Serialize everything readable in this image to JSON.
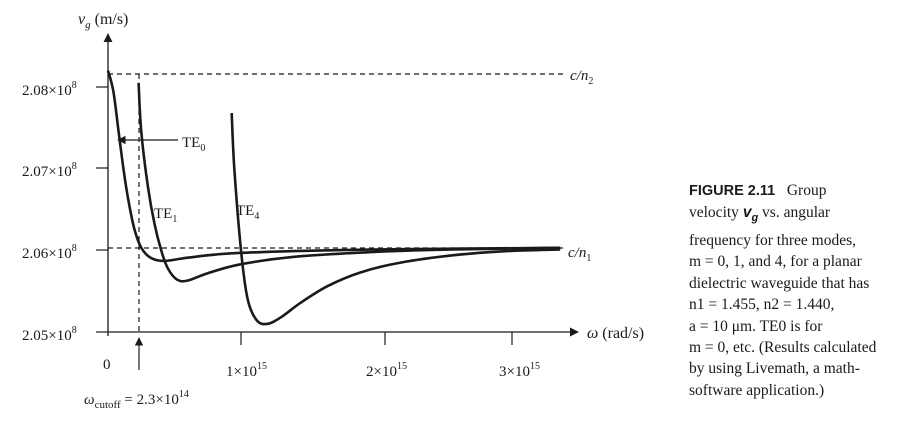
{
  "chart_data": {
    "type": "line",
    "title": "",
    "xlabel": "ω (rad/s)",
    "ylabel": "v_g (m/s)",
    "xlim": [
      0,
      3400000000000000.0
    ],
    "ylim": [
      205000000.0,
      208200000.0
    ],
    "x_ticks": [
      "0",
      "1×10^15",
      "2×10^15",
      "3×10^15"
    ],
    "y_ticks": [
      "2.05×10^8",
      "2.06×10^8",
      "2.07×10^8",
      "2.08×10^8"
    ],
    "reference_lines": [
      {
        "label": "c/n2",
        "y": 208200000.0,
        "style": "dashed"
      },
      {
        "label": "c/n1",
        "y": 206040000.0,
        "style": "dashed"
      }
    ],
    "cutoff_annotation": {
      "label": "ωcutoff = 2.3×10^14",
      "x": 230000000000000.0
    },
    "series": [
      {
        "name": "TE0",
        "x": [
          0,
          40000000000000.0,
          80000000000000.0,
          120000000000000.0,
          160000000000000.0,
          200000000000000.0,
          250000000000000.0,
          320000000000000.0,
          420000000000000.0,
          600000000000000.0,
          900000000000000.0,
          1400000000000000.0,
          2000000000000000.0,
          2600000000000000.0,
          3400000000000000.0
        ],
        "y": [
          208200000.0,
          207950000.0,
          207450000.0,
          206950000.0,
          206550000.0,
          206250000.0,
          206030000.0,
          205910000.0,
          205870000.0,
          205910000.0,
          205960000.0,
          205990000.0,
          206010000.0,
          206020000.0,
          206030000.0
        ]
      },
      {
        "name": "TE1",
        "x": [
          230000000000000.0,
          250000000000000.0,
          300000000000000.0,
          350000000000000.0,
          400000000000000.0,
          450000000000000.0,
          520000000000000.0,
          600000000000000.0,
          750000000000000.0,
          1000000000000000.0,
          1400000000000000.0,
          2000000000000000.0,
          2600000000000000.0,
          3400000000000000.0
        ],
        "y": [
          208050000.0,
          207450000.0,
          206780000.0,
          206320000.0,
          206000000.0,
          205780000.0,
          205640000.0,
          205630000.0,
          205720000.0,
          205830000.0,
          205920000.0,
          205980000.0,
          206010000.0,
          206030000.0
        ]
      },
      {
        "name": "TE4",
        "x": [
          930000000000000.0,
          950000000000000.0,
          1000000000000000.0,
          1050000000000000.0,
          1120000000000000.0,
          1200000000000000.0,
          1300000000000000.0,
          1450000000000000.0,
          1650000000000000.0,
          1900000000000000.0,
          2200000000000000.0,
          2600000000000000.0,
          3000000000000000.0,
          3400000000000000.0
        ],
        "y": [
          207680000.0,
          207000000.0,
          206000000.0,
          205400000.0,
          205140000.0,
          205100000.0,
          205180000.0,
          205360000.0,
          205560000.0,
          205730000.0,
          205850000.0,
          205940000.0,
          205990000.0,
          206010000.0
        ]
      }
    ]
  },
  "caption": {
    "figure_label": "FIGURE 2.11",
    "line1": "Group",
    "line2_pre": "velocity ",
    "line2_var": "v",
    "line2_sub": "g",
    "line2_post": " vs. angular",
    "line3": "frequency for three modes,",
    "line4": "m = 0, 1, and 4, for a planar",
    "line5": "dielectric waveguide that has",
    "line6": "n1 = 1.455, n2 = 1.440,",
    "line7": "a = 10 μm. TE0 is for",
    "line8": "m = 0, etc. (Results calculated",
    "line9": "by using Livemath, a math-",
    "line10": "software application.)"
  }
}
